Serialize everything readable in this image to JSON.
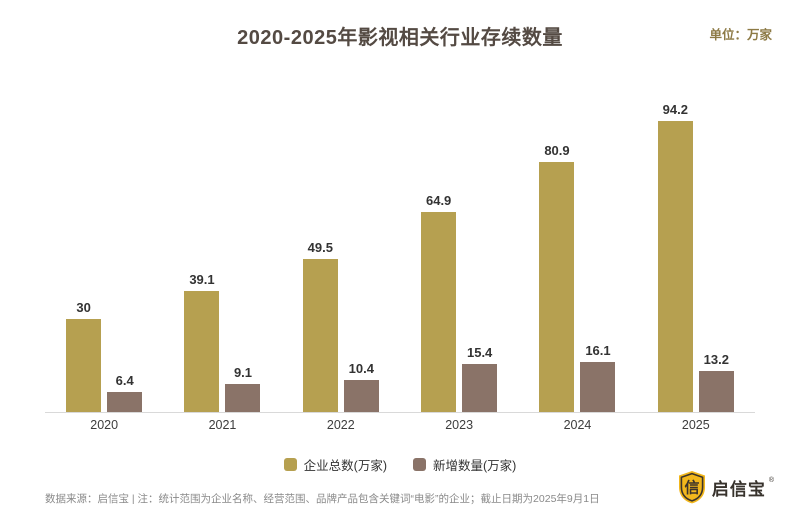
{
  "header": {
    "title": "2020-2025年影视相关行业存续数量",
    "unit_label": "单位：万家"
  },
  "chart_data": {
    "type": "bar",
    "categories": [
      "2020",
      "2021",
      "2022",
      "2023",
      "2024",
      "2025"
    ],
    "series": [
      {
        "name": "企业总数(万家)",
        "color": "#b6a050",
        "values": [
          30,
          39.1,
          49.5,
          64.9,
          80.9,
          94.2
        ]
      },
      {
        "name": "新增数量(万家)",
        "color": "#8a7368",
        "values": [
          6.4,
          9.1,
          10.4,
          15.4,
          16.1,
          13.2
        ]
      }
    ],
    "title": "2020-2025年影视相关行业存续数量",
    "xlabel": "",
    "ylabel": "",
    "ylim": [
      0,
      100
    ],
    "grid": false,
    "legend_position": "bottom",
    "value_labels": true,
    "axis_line_color": "#d9d9d9"
  },
  "footer": {
    "note": "数据来源：启信宝 | 注：统计范围为企业名称、经营范围、品牌产品包含关键词“电影”的企业；截止日期为2025年9月1日",
    "brand_name": "启信宝",
    "trademark": "®",
    "logo_icon": "shield-icon",
    "logo_glyph": "信",
    "brand_gold": "#f2b71c",
    "brand_dark": "#3c342b"
  }
}
